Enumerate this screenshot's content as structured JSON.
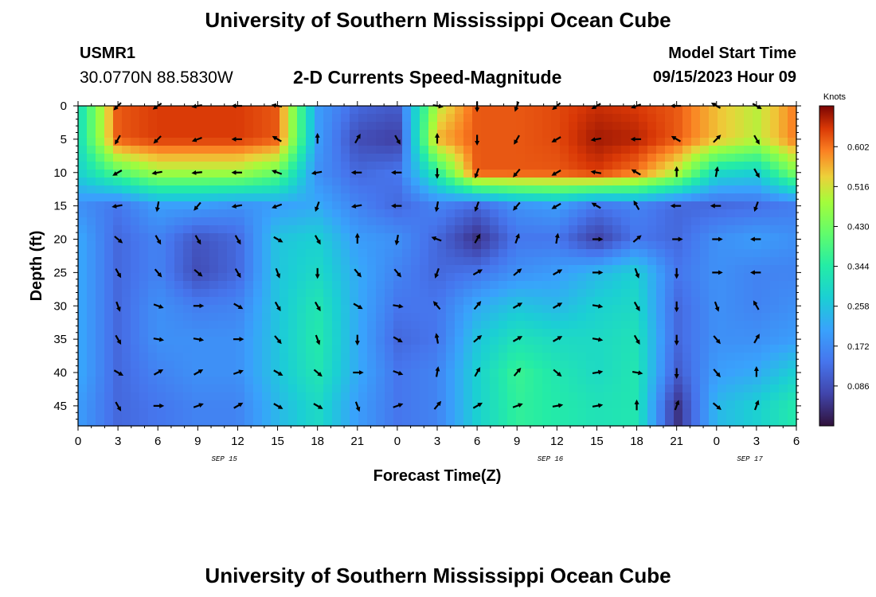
{
  "header": {
    "title": "University of Southern Mississippi Ocean Cube",
    "station_id": "USMR1",
    "station_coords": "30.0770N  88.5830W",
    "plot_title": "2-D Currents Speed-Magnitude",
    "model_start_label": "Model Start Time",
    "model_start_value": "09/15/2023 Hour 09"
  },
  "footer": {
    "title": "University of Southern Mississippi Ocean Cube"
  },
  "chart_data": {
    "type": "heatmap",
    "xlabel": "Forecast Time(Z)",
    "ylabel": "Depth (ft)",
    "x_tick_labels": [
      "0",
      "3",
      "6",
      "9",
      "12",
      "15",
      "18",
      "21",
      "0",
      "3",
      "6",
      "9",
      "12",
      "15",
      "18",
      "21",
      "0",
      "3",
      "6"
    ],
    "x_hours": [
      0,
      3,
      6,
      9,
      12,
      15,
      18,
      21,
      24,
      27,
      30,
      33,
      36,
      39,
      42,
      45,
      48,
      51,
      54
    ],
    "date_labels": [
      {
        "label": "SEP 15",
        "hour": 11
      },
      {
        "label": "SEP 16",
        "hour": 35.5
      },
      {
        "label": "SEP 17",
        "hour": 50.5
      }
    ],
    "y_ticks": [
      0,
      5,
      10,
      15,
      20,
      25,
      30,
      35,
      40,
      45
    ],
    "xlim": [
      0,
      54
    ],
    "ylim": [
      0,
      48
    ],
    "y_inverted": true,
    "colorbar": {
      "title": "Knots",
      "ticks": [
        "0.602",
        "0.516",
        "0.430",
        "0.344",
        "0.258",
        "0.172",
        "0.086"
      ],
      "tick_values": [
        0.602,
        0.516,
        0.43,
        0.344,
        0.258,
        0.172,
        0.086
      ],
      "range": [
        0,
        0.69
      ]
    },
    "speed_field": {
      "hours": [
        0,
        3,
        6,
        9,
        12,
        15,
        18,
        21,
        24,
        27,
        30,
        33,
        36,
        39,
        42,
        45,
        48,
        51,
        54
      ],
      "depths": [
        0,
        5,
        10,
        15,
        20,
        25,
        30,
        35,
        40,
        45,
        48
      ],
      "values": [
        [
          0.3,
          0.62,
          0.64,
          0.64,
          0.64,
          0.62,
          0.2,
          0.12,
          0.1,
          0.5,
          0.62,
          0.62,
          0.63,
          0.65,
          0.64,
          0.62,
          0.55,
          0.5,
          0.6
        ],
        [
          0.3,
          0.62,
          0.64,
          0.64,
          0.64,
          0.62,
          0.2,
          0.08,
          0.06,
          0.56,
          0.62,
          0.62,
          0.63,
          0.67,
          0.66,
          0.62,
          0.55,
          0.5,
          0.6
        ],
        [
          0.28,
          0.4,
          0.48,
          0.48,
          0.48,
          0.42,
          0.18,
          0.12,
          0.14,
          0.35,
          0.62,
          0.62,
          0.62,
          0.64,
          0.6,
          0.5,
          0.3,
          0.28,
          0.45
        ],
        [
          0.18,
          0.14,
          0.2,
          0.2,
          0.18,
          0.2,
          0.22,
          0.16,
          0.12,
          0.16,
          0.12,
          0.18,
          0.2,
          0.14,
          0.16,
          0.12,
          0.12,
          0.13,
          0.15
        ],
        [
          0.22,
          0.12,
          0.16,
          0.09,
          0.12,
          0.26,
          0.28,
          0.2,
          0.18,
          0.12,
          0.04,
          0.14,
          0.14,
          0.06,
          0.14,
          0.12,
          0.18,
          0.2,
          0.18
        ],
        [
          0.22,
          0.12,
          0.16,
          0.08,
          0.12,
          0.26,
          0.3,
          0.22,
          0.16,
          0.12,
          0.14,
          0.18,
          0.2,
          0.24,
          0.28,
          0.14,
          0.18,
          0.16,
          0.16
        ],
        [
          0.22,
          0.12,
          0.18,
          0.15,
          0.16,
          0.26,
          0.33,
          0.22,
          0.14,
          0.14,
          0.22,
          0.26,
          0.24,
          0.28,
          0.3,
          0.12,
          0.18,
          0.16,
          0.18
        ],
        [
          0.22,
          0.12,
          0.18,
          0.18,
          0.18,
          0.26,
          0.34,
          0.22,
          0.12,
          0.14,
          0.26,
          0.32,
          0.3,
          0.3,
          0.32,
          0.12,
          0.18,
          0.18,
          0.2
        ],
        [
          0.22,
          0.12,
          0.16,
          0.18,
          0.18,
          0.26,
          0.33,
          0.22,
          0.14,
          0.16,
          0.28,
          0.37,
          0.33,
          0.3,
          0.33,
          0.1,
          0.2,
          0.22,
          0.28
        ],
        [
          0.2,
          0.12,
          0.14,
          0.16,
          0.16,
          0.24,
          0.3,
          0.2,
          0.14,
          0.16,
          0.28,
          0.36,
          0.34,
          0.32,
          0.33,
          0.04,
          0.24,
          0.28,
          0.34
        ],
        [
          0.2,
          0.12,
          0.14,
          0.16,
          0.16,
          0.24,
          0.3,
          0.2,
          0.14,
          0.16,
          0.28,
          0.36,
          0.34,
          0.32,
          0.33,
          0.04,
          0.24,
          0.28,
          0.34
        ]
      ]
    },
    "vectors": {
      "hours": [
        3,
        6,
        9,
        12,
        15,
        18,
        21,
        24,
        27,
        30,
        33,
        36,
        39,
        42,
        45,
        48,
        51,
        54
      ],
      "depths": [
        0,
        5,
        10,
        15,
        20,
        25,
        30,
        35,
        40,
        45
      ],
      "directions_deg": [
        [
          225,
          235,
          260,
          270,
          280,
          null,
          null,
          null,
          100,
          180,
          200,
          230,
          240,
          250,
          270,
          300,
          120,
          null
        ],
        [
          210,
          225,
          250,
          270,
          300,
          0,
          30,
          150,
          0,
          180,
          210,
          240,
          260,
          270,
          300,
          45,
          150,
          null
        ],
        [
          240,
          260,
          265,
          270,
          290,
          260,
          270,
          270,
          180,
          200,
          220,
          240,
          280,
          300,
          0,
          10,
          150,
          null
        ],
        [
          260,
          190,
          220,
          260,
          250,
          200,
          260,
          270,
          190,
          200,
          220,
          240,
          300,
          330,
          270,
          270,
          200,
          null
        ],
        [
          130,
          150,
          150,
          150,
          120,
          150,
          0,
          190,
          290,
          30,
          20,
          10,
          90,
          50,
          90,
          90,
          270,
          null
        ],
        [
          150,
          140,
          130,
          150,
          160,
          180,
          140,
          140,
          200,
          60,
          50,
          60,
          90,
          160,
          180,
          90,
          270,
          null
        ],
        [
          160,
          110,
          90,
          120,
          150,
          150,
          120,
          100,
          320,
          40,
          60,
          60,
          100,
          150,
          180,
          160,
          330,
          null
        ],
        [
          150,
          100,
          100,
          90,
          140,
          160,
          180,
          120,
          350,
          50,
          60,
          60,
          100,
          150,
          180,
          140,
          30,
          null
        ],
        [
          120,
          60,
          60,
          70,
          120,
          130,
          90,
          110,
          10,
          30,
          40,
          130,
          80,
          100,
          180,
          140,
          0,
          null
        ],
        [
          150,
          90,
          70,
          60,
          120,
          120,
          160,
          70,
          40,
          60,
          70,
          80,
          80,
          0,
          20,
          130,
          20,
          null
        ]
      ]
    }
  }
}
